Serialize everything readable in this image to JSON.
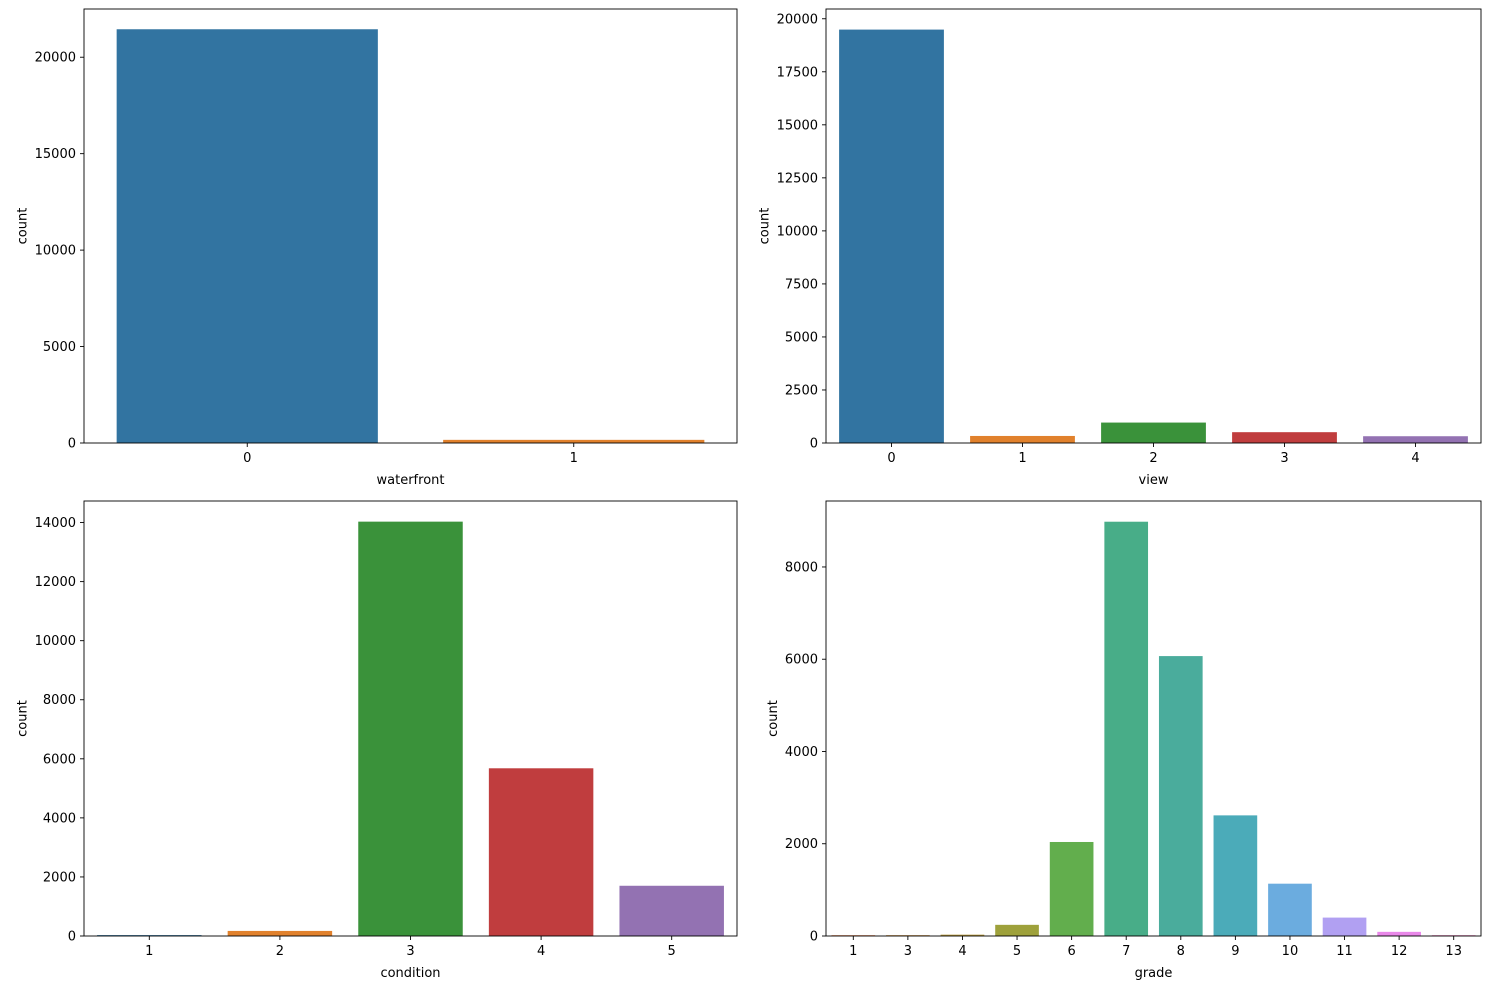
{
  "chart_data": [
    {
      "type": "bar",
      "xlabel": "waterfront",
      "ylabel": "count",
      "categories": [
        "0",
        "1"
      ],
      "values": [
        21450,
        163
      ],
      "colors": [
        "#3274a1",
        "#e1812c"
      ],
      "ylim": [
        0,
        22500
      ],
      "yticks": [
        0,
        5000,
        10000,
        15000,
        20000
      ],
      "grid": false,
      "legend": "none"
    },
    {
      "type": "bar",
      "xlabel": "view",
      "ylabel": "count",
      "categories": [
        "0",
        "1",
        "2",
        "3",
        "4"
      ],
      "values": [
        19489,
        332,
        963,
        510,
        319
      ],
      "colors": [
        "#3274a1",
        "#e1812c",
        "#3a923a",
        "#c03d3e",
        "#9372b2"
      ],
      "ylim": [
        0,
        20460
      ],
      "yticks": [
        0,
        2500,
        5000,
        7500,
        10000,
        12500,
        15000,
        17500,
        20000
      ],
      "grid": false,
      "legend": "none"
    },
    {
      "type": "bar",
      "xlabel": "condition",
      "ylabel": "count",
      "categories": [
        "1",
        "2",
        "3",
        "4",
        "5"
      ],
      "values": [
        30,
        172,
        14031,
        5679,
        1701
      ],
      "colors": [
        "#3274a1",
        "#e1812c",
        "#3a923a",
        "#c03d3e",
        "#9372b2"
      ],
      "ylim": [
        0,
        14730
      ],
      "yticks": [
        0,
        2000,
        4000,
        6000,
        8000,
        10000,
        12000,
        14000
      ],
      "grid": false,
      "legend": "none"
    },
    {
      "type": "bar",
      "xlabel": "grade",
      "ylabel": "count",
      "categories": [
        "1",
        "3",
        "4",
        "5",
        "6",
        "7",
        "8",
        "9",
        "10",
        "11",
        "12",
        "13"
      ],
      "values": [
        1,
        3,
        29,
        242,
        2038,
        8981,
        6068,
        2615,
        1134,
        399,
        90,
        13
      ],
      "colors": [
        "#e8804f",
        "#d08f3a",
        "#b8993a",
        "#9ea13b",
        "#62ae4d",
        "#48ad88",
        "#4aac9c",
        "#4babb9",
        "#6bacdf",
        "#b1a0f2",
        "#e988e9",
        "#f485be"
      ],
      "ylim": [
        0,
        9430
      ],
      "yticks": [
        0,
        2000,
        4000,
        6000,
        8000
      ],
      "grid": false,
      "legend": "none"
    }
  ]
}
